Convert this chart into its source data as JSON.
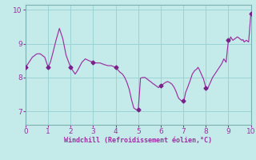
{
  "xlabel": "Windchill (Refroidissement éolien,°C)",
  "xlim": [
    0,
    10
  ],
  "ylim": [
    6.6,
    10.15
  ],
  "xticks": [
    0,
    1,
    2,
    3,
    4,
    5,
    6,
    7,
    8,
    9,
    10
  ],
  "yticks": [
    7,
    8,
    9,
    10
  ],
  "bg_color": "#c5eaea",
  "line_color": "#9b30a0",
  "marker_color": "#7a208a",
  "grid_color": "#9ad4d4",
  "x": [
    0.0,
    0.15,
    0.3,
    0.5,
    0.65,
    0.75,
    0.85,
    1.0,
    1.1,
    1.2,
    1.35,
    1.5,
    1.65,
    1.8,
    2.0,
    2.1,
    2.2,
    2.3,
    2.5,
    2.65,
    2.8,
    3.0,
    3.1,
    3.2,
    3.3,
    3.5,
    3.65,
    3.8,
    4.0,
    4.1,
    4.2,
    4.3,
    4.4,
    4.5,
    4.6,
    4.7,
    4.8,
    4.9,
    5.0,
    5.05,
    5.1,
    5.2,
    5.3,
    5.4,
    5.5,
    5.6,
    5.65,
    5.7,
    5.8,
    5.9,
    6.0,
    6.1,
    6.2,
    6.3,
    6.4,
    6.5,
    6.6,
    6.7,
    6.75,
    6.8,
    6.9,
    7.0,
    7.05,
    7.1,
    7.2,
    7.3,
    7.4,
    7.5,
    7.6,
    7.65,
    7.7,
    7.8,
    7.9,
    8.0,
    8.05,
    8.1,
    8.2,
    8.3,
    8.4,
    8.5,
    8.6,
    8.7,
    8.8,
    8.85,
    8.9,
    9.0,
    9.05,
    9.1,
    9.15,
    9.2,
    9.3,
    9.4,
    9.45,
    9.5,
    9.6,
    9.65,
    9.7,
    9.8,
    9.9,
    10.0
  ],
  "y": [
    8.3,
    8.45,
    8.6,
    8.7,
    8.7,
    8.65,
    8.6,
    8.3,
    8.45,
    8.7,
    9.1,
    9.45,
    9.15,
    8.65,
    8.3,
    8.2,
    8.1,
    8.2,
    8.45,
    8.55,
    8.5,
    8.45,
    8.43,
    8.43,
    8.43,
    8.38,
    8.35,
    8.35,
    8.3,
    8.22,
    8.15,
    8.1,
    8.0,
    7.85,
    7.65,
    7.35,
    7.1,
    7.05,
    7.05,
    7.5,
    7.98,
    8.0,
    8.0,
    7.95,
    7.9,
    7.85,
    7.82,
    7.8,
    7.75,
    7.7,
    7.75,
    7.8,
    7.85,
    7.88,
    7.85,
    7.8,
    7.7,
    7.55,
    7.45,
    7.38,
    7.32,
    7.3,
    7.38,
    7.55,
    7.72,
    7.9,
    8.1,
    8.2,
    8.25,
    8.3,
    8.25,
    8.1,
    7.95,
    7.7,
    7.65,
    7.7,
    7.85,
    8.0,
    8.1,
    8.2,
    8.3,
    8.4,
    8.55,
    8.5,
    8.45,
    9.1,
    9.05,
    9.2,
    9.15,
    9.1,
    9.15,
    9.2,
    9.18,
    9.15,
    9.1,
    9.12,
    9.05,
    9.1,
    9.05,
    9.9
  ],
  "marker_x": [
    0.0,
    1.0,
    2.0,
    3.0,
    4.0,
    5.0,
    6.0,
    7.0,
    8.0,
    9.0,
    10.0
  ],
  "marker_y": [
    8.3,
    8.3,
    8.3,
    8.45,
    8.3,
    7.05,
    7.75,
    7.3,
    7.7,
    9.1,
    9.9
  ]
}
